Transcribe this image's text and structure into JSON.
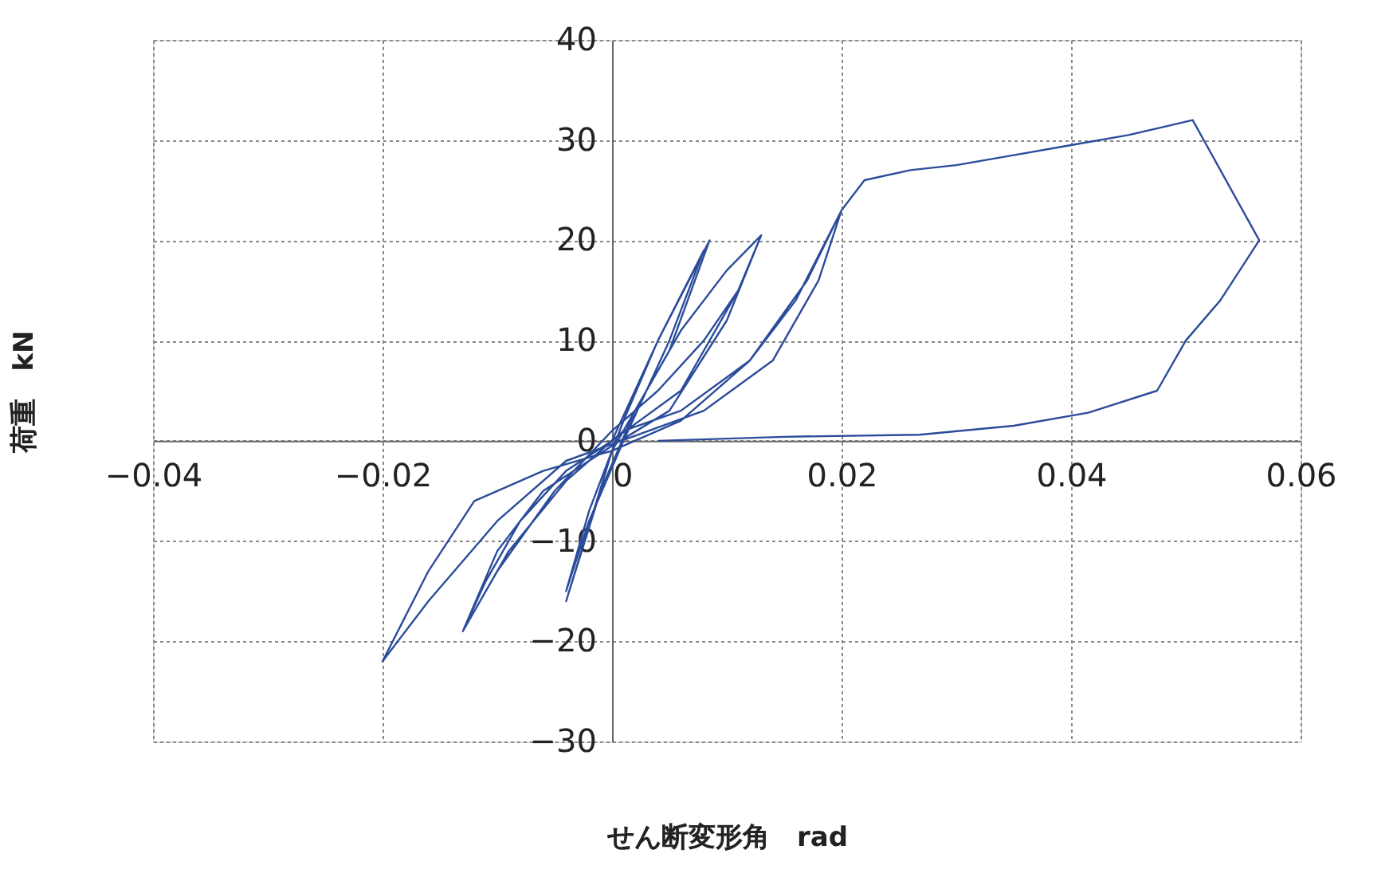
{
  "chart_data": {
    "type": "line",
    "xlabel": "せん断変形角　rad",
    "ylabel": "荷重　kN",
    "xlim": [
      -0.04,
      0.06
    ],
    "xticks": [
      -0.04,
      -0.02,
      0,
      0.02,
      0.04,
      0.06
    ],
    "ylim": [
      -30,
      40
    ],
    "yticks": [
      -30,
      -20,
      -10,
      0,
      10,
      20,
      30,
      40
    ],
    "grid": true,
    "marker": "none",
    "line_style": "solid",
    "series": [
      {
        "color": "#2b4c9b",
        "x": [
          0,
          0.004,
          0.008,
          0.005,
          0.001,
          -0.002,
          -0.004,
          -0.002,
          0.001,
          0.004,
          0.0085,
          0.005,
          0.0,
          -0.004,
          -0.001,
          0.002,
          0.006,
          0.01,
          0.013,
          0.011,
          0.006,
          0.0,
          -0.004,
          -0.008,
          -0.011,
          -0.013,
          -0.01,
          -0.005,
          0,
          0.004,
          0.008,
          0.011,
          0.013,
          0.01,
          0.005,
          0,
          -0.006,
          -0.01,
          -0.013,
          -0.009,
          -0.004,
          0.001,
          0.006,
          0.012,
          0.016,
          0.02,
          0.017,
          0.012,
          0.006,
          0,
          -0.006,
          -0.012,
          -0.016,
          -0.02,
          -0.016,
          -0.01,
          -0.004,
          0.002,
          0.008,
          0.014,
          0.018,
          0.02,
          0.022,
          0.026,
          0.03,
          0.035,
          0.04,
          0.045,
          0.048,
          0.0506,
          0.0564,
          0.053,
          0.05,
          0.0475,
          0.0415,
          0.035,
          0.0268,
          0.015,
          0.004
        ],
        "values": [
          0,
          10,
          19,
          10,
          0,
          -8,
          -15,
          -7,
          2,
          10,
          20,
          9,
          -1,
          -16,
          -5,
          3,
          11,
          17,
          20.5,
          15,
          5,
          0,
          -3,
          -8,
          -14,
          -19,
          -13,
          -5,
          1,
          5,
          10,
          15,
          20.5,
          12,
          3,
          -0.5,
          -5,
          -11,
          -19,
          -11,
          -4,
          1,
          3,
          8,
          14,
          23,
          16,
          8,
          2,
          -1,
          -3,
          -6,
          -13,
          -22,
          -16,
          -8,
          -2,
          0.5,
          3,
          8,
          16,
          23,
          26,
          27,
          27.5,
          28.5,
          29.5,
          30.5,
          31.3,
          32,
          20,
          14,
          10,
          5,
          2.8,
          1.5,
          0.6,
          0.4,
          0
        ]
      }
    ]
  }
}
